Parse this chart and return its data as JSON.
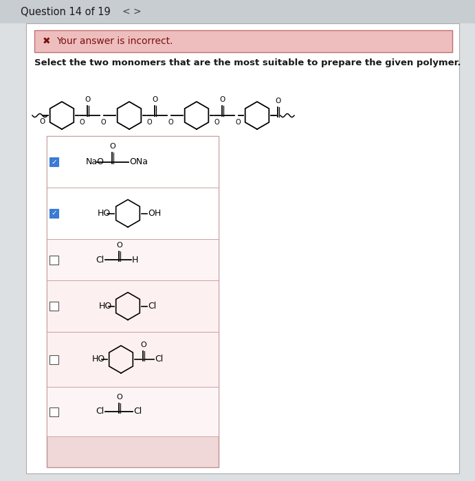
{
  "title": "Question 14 of 19",
  "nav_left": "<",
  "nav_right": ">",
  "error_text": "Your answer is incorrect.",
  "question_text": "Select the two monomers that are the most suitable to prepare the given polymer.",
  "bg_color": "#dde0e3",
  "content_bg": "#f5f5f5",
  "error_bg": "#eebebe",
  "error_border": "#c07070",
  "error_text_color": "#7a1010",
  "white": "#ffffff",
  "panel_bg": "#f0d8d8",
  "checked_bg": "#ffffff",
  "check_blue": "#3a7bd5",
  "check_white": "#ffffff",
  "text_color": "#1a1a1a",
  "header_bg": "#c8cdd2",
  "inner_bg": "#ffffff"
}
